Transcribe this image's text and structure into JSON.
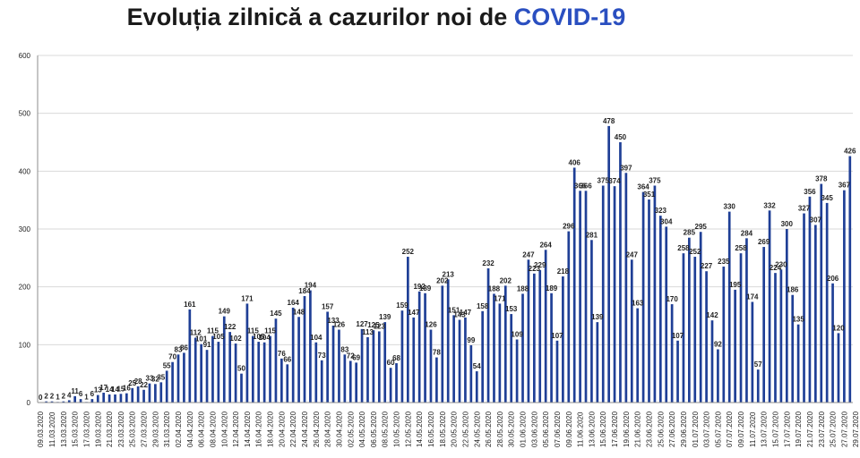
{
  "header": {
    "title_main": "Evoluția zilnică a cazurilor noi de ",
    "title_accent": "COVID-19"
  },
  "colors": {
    "bar": "#1f3f96",
    "accent": "#2a4fc0"
  },
  "chart_data": {
    "type": "bar",
    "title": "Evoluția zilnică a cazurilor noi de COVID-19",
    "xlabel": "",
    "ylabel": "",
    "ylim": [
      0,
      600
    ],
    "yticks": [
      0,
      100,
      200,
      300,
      400,
      500,
      600
    ],
    "grid": true,
    "legend": "none",
    "start_date": "2020-03-09",
    "end_date": "2020-07-29",
    "x_tick_labels": [
      "09.03.2020",
      "11.03.2020",
      "13.03.2020",
      "15.03.2020",
      "17.03.2020",
      "19.03.2020",
      "21.03.2020",
      "23.03.2020",
      "25.03.2020",
      "27.03.2020",
      "29.03.2020",
      "31.03.2020",
      "02.04.2020",
      "04.04.2020",
      "06.04.2020",
      "08.04.2020",
      "10.04.2020",
      "12.04.2020",
      "14.04.2020",
      "16.04.2020",
      "18.04.2020",
      "20.04.2020",
      "22.04.2020",
      "24.04.2020",
      "26.04.2020",
      "28.04.2020",
      "30.04.2020",
      "02.05.2020",
      "04.05.2020",
      "06.05.2020",
      "08.05.2020",
      "10.05.2020",
      "12.05.2020",
      "14.05.2020",
      "16.05.2020",
      "18.05.2020",
      "20.05.2020",
      "22.05.2020",
      "24.05.2020",
      "26.05.2020",
      "28.05.2020",
      "30.05.2020",
      "01.06.2020",
      "03.06.2020",
      "05.06.2020",
      "07.06.2020",
      "09.06.2020",
      "11.06.2020",
      "13.06.2020",
      "15.06.2020",
      "17.06.2020",
      "19.06.2020",
      "21.06.2020",
      "23.06.2020",
      "25.06.2020",
      "27.06.2020",
      "29.06.2020",
      "01.07.2020",
      "03.07.2020",
      "05.07.2020",
      "07.07.2020",
      "09.07.2020",
      "11.07.2020",
      "13.07.2020",
      "15.07.2020",
      "17.07.2020",
      "19.07.2020",
      "21.07.2020",
      "23.07.2020",
      "25.07.2020",
      "27.07.2020",
      "29.07.2020"
    ],
    "values": [
      0,
      2,
      2,
      1,
      2,
      4,
      11,
      6,
      1,
      6,
      13,
      17,
      14,
      14,
      15,
      16,
      25,
      28,
      22,
      33,
      32,
      35,
      55,
      70,
      83,
      86,
      161,
      112,
      101,
      91,
      115,
      105,
      149,
      122,
      102,
      50,
      171,
      115,
      105,
      104,
      115,
      145,
      76,
      66,
      164,
      148,
      184,
      194,
      104,
      73,
      157,
      133,
      126,
      83,
      72,
      69,
      127,
      113,
      125,
      123,
      139,
      60,
      68,
      159,
      252,
      147,
      192,
      189,
      126,
      78,
      202,
      213,
      151,
      143,
      147,
      99,
      54,
      158,
      232,
      188,
      171,
      202,
      153,
      109,
      188,
      247,
      223,
      229,
      264,
      189,
      107,
      218,
      296,
      406,
      366,
      366,
      281,
      139,
      375,
      478,
      374,
      450,
      397,
      247,
      163,
      364,
      351,
      375,
      323,
      304,
      170,
      107,
      258,
      285,
      252,
      295,
      227,
      142,
      92,
      235,
      330,
      195,
      258,
      284,
      174,
      57,
      269,
      332,
      224,
      230,
      300,
      186,
      135,
      327,
      356,
      307,
      378,
      345,
      206,
      120,
      367,
      426
    ]
  }
}
